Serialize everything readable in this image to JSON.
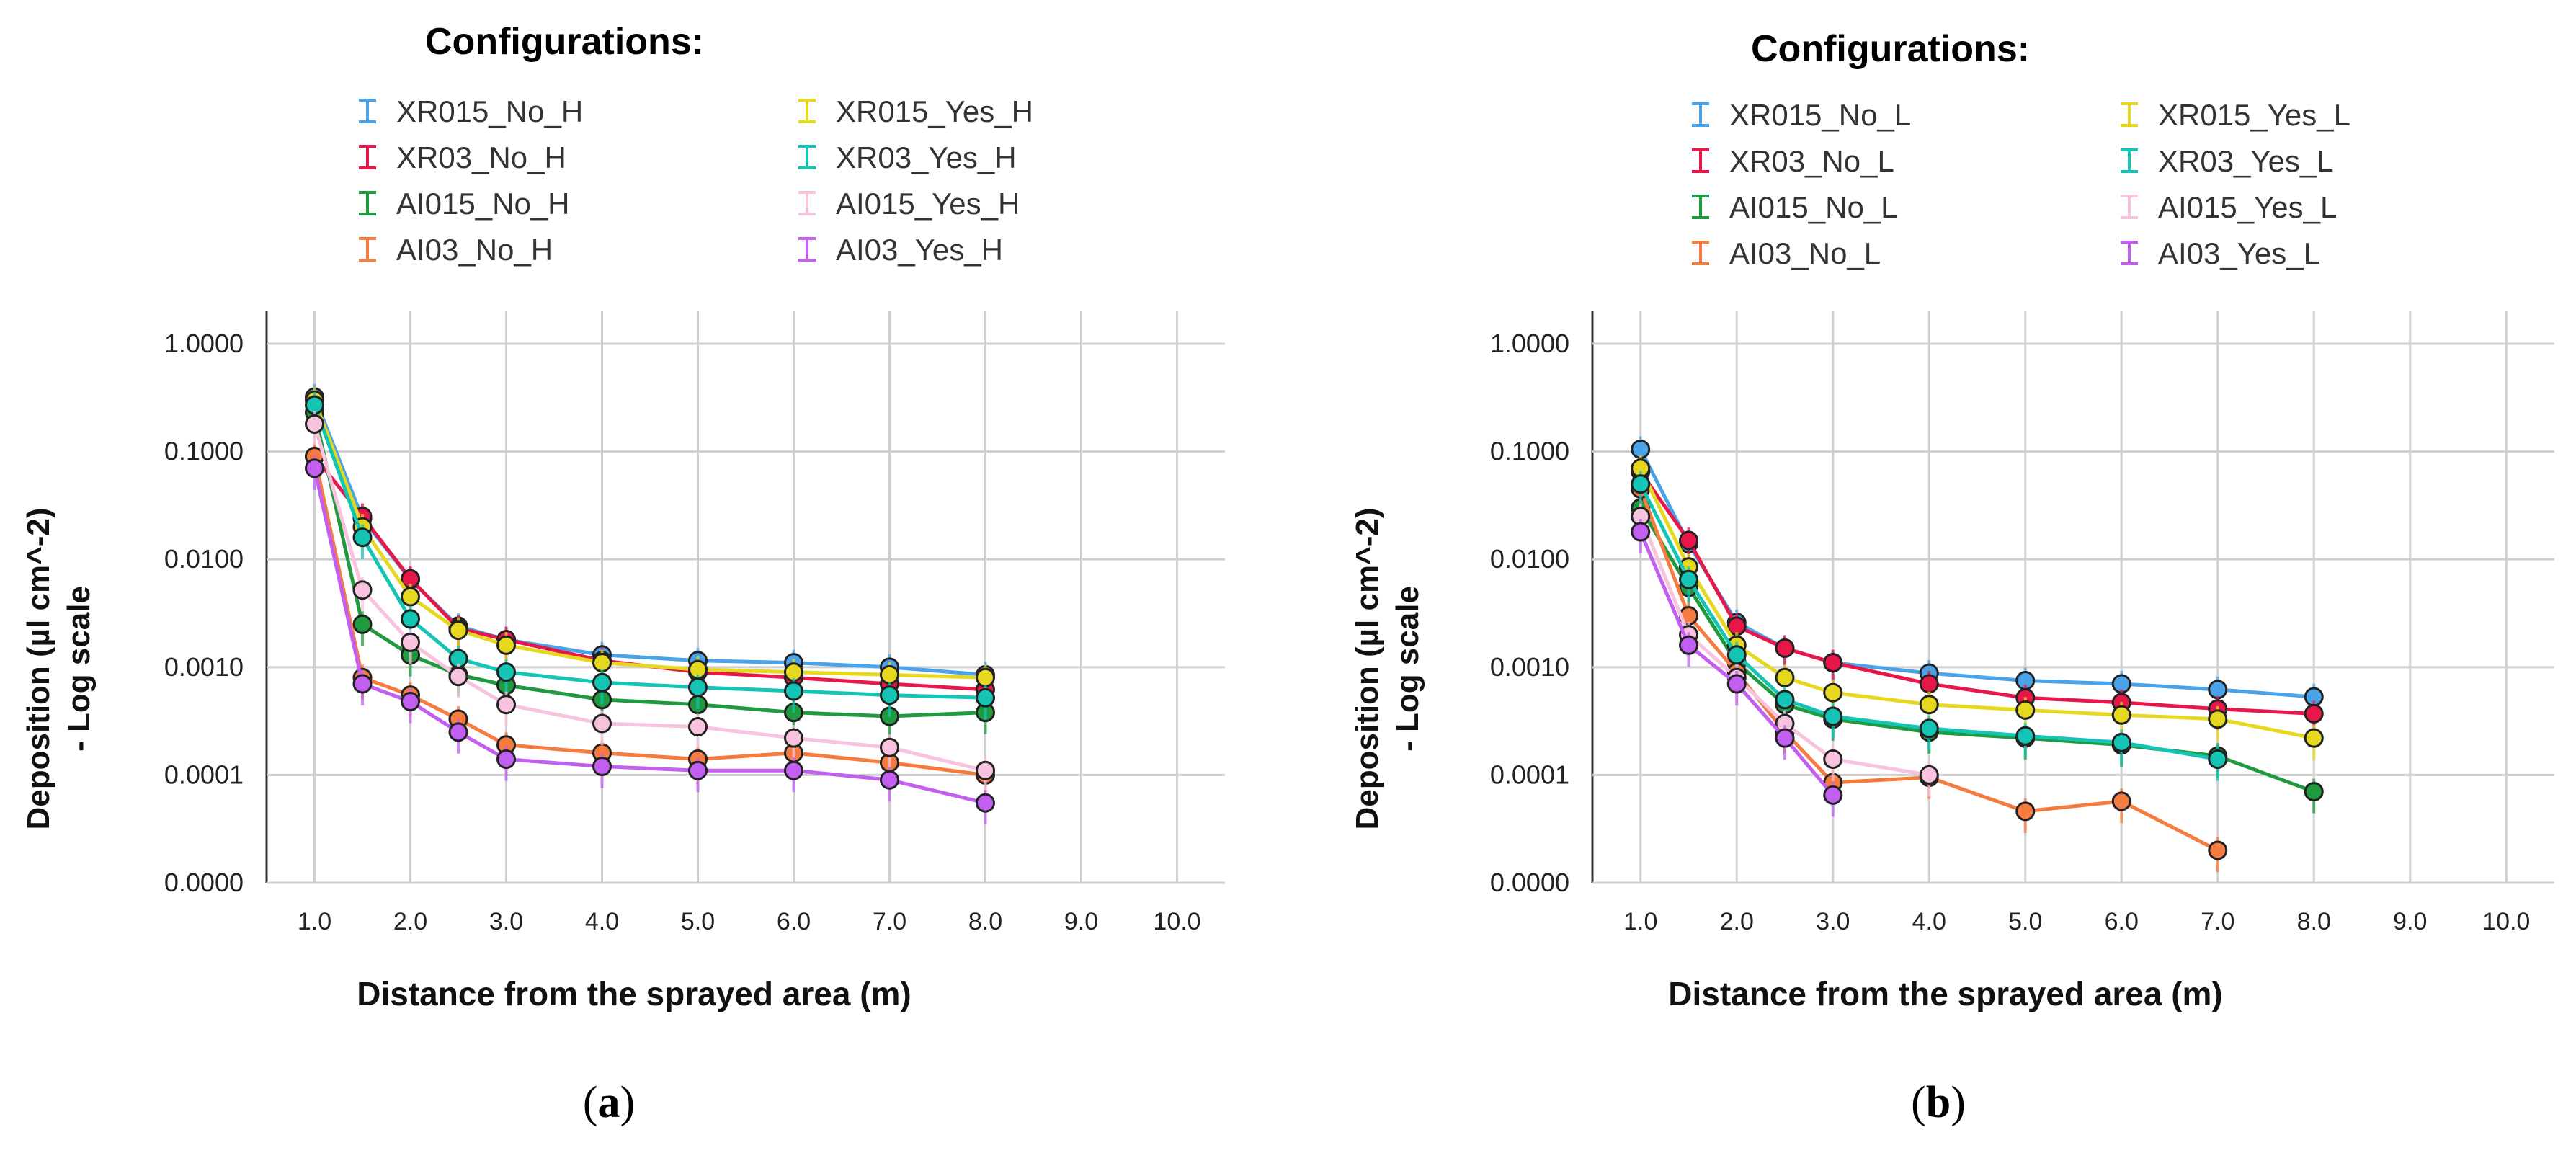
{
  "chart_data": [
    {
      "type": "line",
      "caption": "a",
      "legend_title": "Configurations:",
      "xlabel": "Distance from the sprayed area (m)",
      "ylabel_line1": "Deposition (µl cm^-2)",
      "ylabel_line2": "- Log scale",
      "yscale": "log",
      "ylim": [
        1e-05,
        2.0
      ],
      "xlim": [
        0.5,
        10.5
      ],
      "y_ticks": [
        {
          "value": 1.0,
          "label": "1.0000"
        },
        {
          "value": 0.1,
          "label": "0.1000"
        },
        {
          "value": 0.01,
          "label": "0.0100"
        },
        {
          "value": 0.001,
          "label": "0.0010"
        },
        {
          "value": 0.0001,
          "label": "0.0001"
        },
        {
          "value": 1e-05,
          "label": "0.0000"
        }
      ],
      "x_ticks": [
        {
          "value": 1,
          "label": "1.0"
        },
        {
          "value": 2,
          "label": "2.0"
        },
        {
          "value": 3,
          "label": "3.0"
        },
        {
          "value": 4,
          "label": "4.0"
        },
        {
          "value": 5,
          "label": "5.0"
        },
        {
          "value": 6,
          "label": "6.0"
        },
        {
          "value": 7,
          "label": "7.0"
        },
        {
          "value": 8,
          "label": "8.0"
        },
        {
          "value": 9,
          "label": "9.0"
        },
        {
          "value": 10,
          "label": "10.0"
        }
      ],
      "grid": true,
      "legend_position": "top",
      "x": [
        1.0,
        1.5,
        2.0,
        2.5,
        3.0,
        4.0,
        5.0,
        6.0,
        7.0,
        8.0
      ],
      "series": [
        {
          "name": "XR015_No_H",
          "color": "#4aa3e8",
          "values": [
            0.32,
            0.024,
            0.0065,
            0.0024,
            0.0018,
            0.0013,
            0.00115,
            0.0011,
            0.001,
            0.00085
          ]
        },
        {
          "name": "XR03_No_H",
          "color": "#e8174a",
          "values": [
            0.09,
            0.025,
            0.0066,
            0.0023,
            0.0018,
            0.00115,
            0.0009,
            0.0008,
            0.0007,
            0.00062
          ]
        },
        {
          "name": "AI015_No_H",
          "color": "#1f9a3e",
          "values": [
            0.23,
            0.0025,
            0.0013,
            0.00085,
            0.00068,
            0.0005,
            0.00045,
            0.00038,
            0.00035,
            0.00038
          ]
        },
        {
          "name": "AI03_No_H",
          "color": "#f57b3e",
          "values": [
            0.09,
            0.0008,
            0.00055,
            0.00033,
            0.00019,
            0.00016,
            0.00014,
            0.00016,
            0.00013,
            0.0001
          ]
        },
        {
          "name": "XR015_Yes_H",
          "color": "#e6d81e",
          "values": [
            0.3,
            0.02,
            0.0045,
            0.0022,
            0.0016,
            0.0011,
            0.00095,
            0.0009,
            0.00085,
            0.0008
          ]
        },
        {
          "name": "XR03_Yes_H",
          "color": "#14c4b4",
          "values": [
            0.27,
            0.016,
            0.0028,
            0.0012,
            0.0009,
            0.00072,
            0.00065,
            0.0006,
            0.00055,
            0.00052
          ]
        },
        {
          "name": "AI015_Yes_H",
          "color": "#f7c3df",
          "values": [
            0.18,
            0.0052,
            0.0017,
            0.00082,
            0.00045,
            0.0003,
            0.00028,
            0.00022,
            0.00018,
            0.00011
          ]
        },
        {
          "name": "AI03_Yes_H",
          "color": "#c35ff0",
          "values": [
            0.07,
            0.0007,
            0.00048,
            0.00025,
            0.00014,
            0.00012,
            0.00011,
            0.00011,
            9e-05,
            5.5e-05
          ]
        }
      ]
    },
    {
      "type": "line",
      "caption": "b",
      "legend_title": "Configurations:",
      "xlabel": "Distance from the sprayed area (m)",
      "ylabel_line1": "Deposition (µl cm^-2)",
      "ylabel_line2": "- Log scale",
      "yscale": "log",
      "ylim": [
        1e-05,
        2.0
      ],
      "xlim": [
        0.5,
        10.5
      ],
      "y_ticks": [
        {
          "value": 1.0,
          "label": "1.0000"
        },
        {
          "value": 0.1,
          "label": "0.1000"
        },
        {
          "value": 0.01,
          "label": "0.0100"
        },
        {
          "value": 0.001,
          "label": "0.0010"
        },
        {
          "value": 0.0001,
          "label": "0.0001"
        },
        {
          "value": 1e-05,
          "label": "0.0000"
        }
      ],
      "x_ticks": [
        {
          "value": 1,
          "label": "1.0"
        },
        {
          "value": 2,
          "label": "2.0"
        },
        {
          "value": 3,
          "label": "3.0"
        },
        {
          "value": 4,
          "label": "4.0"
        },
        {
          "value": 5,
          "label": "5.0"
        },
        {
          "value": 6,
          "label": "6.0"
        },
        {
          "value": 7,
          "label": "7.0"
        },
        {
          "value": 8,
          "label": "8.0"
        },
        {
          "value": 9,
          "label": "9.0"
        },
        {
          "value": 10,
          "label": "10.0"
        }
      ],
      "grid": true,
      "legend_position": "top",
      "x": [
        1.0,
        1.5,
        2.0,
        2.5,
        3.0,
        4.0,
        5.0,
        6.0,
        7.0,
        8.0
      ],
      "series": [
        {
          "name": "XR015_No_L",
          "color": "#4aa3e8",
          "values": [
            0.105,
            0.014,
            0.0026,
            0.0015,
            0.0011,
            0.00088,
            0.00075,
            0.0007,
            0.00062,
            0.00053
          ]
        },
        {
          "name": "XR03_No_L",
          "color": "#e8174a",
          "values": [
            0.065,
            0.015,
            0.0024,
            0.0015,
            0.0011,
            0.0007,
            0.00052,
            0.00047,
            0.00041,
            0.00037
          ]
        },
        {
          "name": "AI015_No_L",
          "color": "#1f9a3e",
          "values": [
            0.03,
            0.0055,
            0.0011,
            0.00045,
            0.00033,
            0.00025,
            0.00022,
            0.00019,
            0.00015,
            7e-05
          ]
        },
        {
          "name": "AI03_No_L",
          "color": "#f57b3e",
          "values": [
            0.045,
            0.003,
            0.0009,
            0.00025,
            8.5e-05,
            9.5e-05,
            4.6e-05,
            5.7e-05,
            2e-05,
            null
          ]
        },
        {
          "name": "XR015_Yes_L",
          "color": "#e6d81e",
          "values": [
            0.07,
            0.0085,
            0.0016,
            0.0008,
            0.00058,
            0.00045,
            0.0004,
            0.00036,
            0.00033,
            0.00022
          ]
        },
        {
          "name": "XR03_Yes_L",
          "color": "#14c4b4",
          "values": [
            0.05,
            0.0065,
            0.0013,
            0.0005,
            0.00035,
            0.00027,
            0.00023,
            0.0002,
            0.00014,
            null
          ]
        },
        {
          "name": "AI015_Yes_L",
          "color": "#f7c3df",
          "values": [
            0.025,
            0.002,
            0.0008,
            0.0003,
            0.00014,
            0.0001,
            null,
            null,
            null,
            null
          ]
        },
        {
          "name": "AI03_Yes_L",
          "color": "#c35ff0",
          "values": [
            0.018,
            0.0016,
            0.0007,
            0.00022,
            6.5e-05,
            null,
            null,
            null,
            null,
            null
          ]
        }
      ]
    }
  ]
}
